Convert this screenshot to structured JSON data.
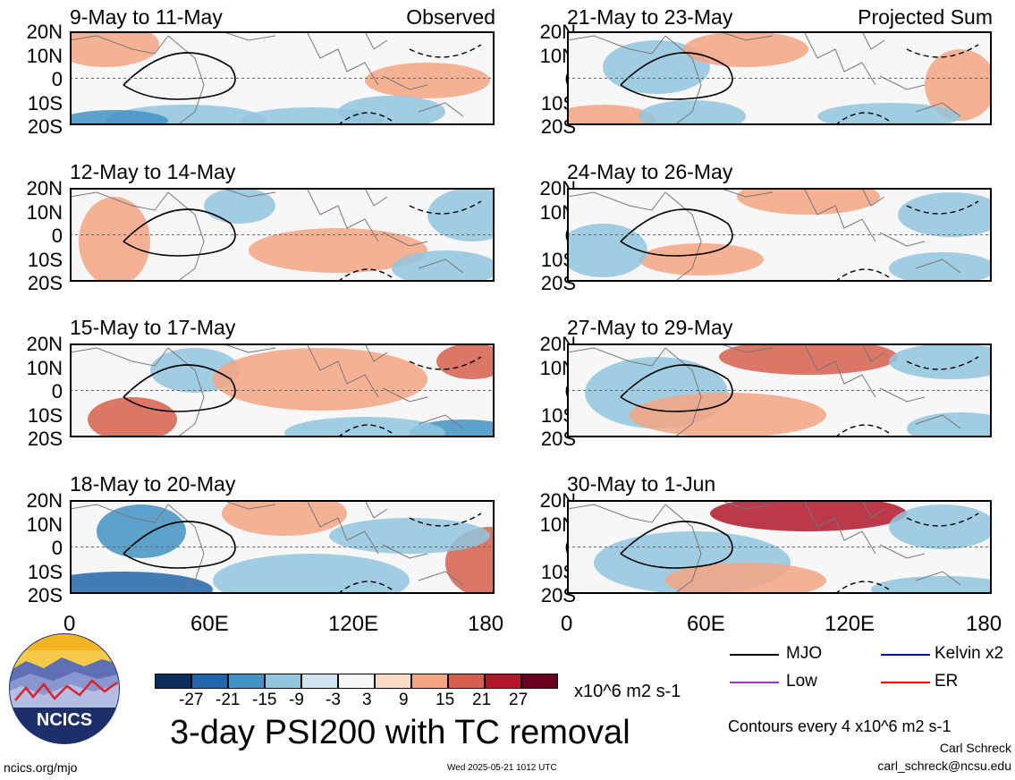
{
  "panels": [
    {
      "id": "p1",
      "title": "9-May to 11-May",
      "label": "Observed"
    },
    {
      "id": "p2",
      "title": "21-May to 23-May",
      "label": "Projected Sum"
    },
    {
      "id": "p3",
      "title": "12-May to 14-May",
      "label": ""
    },
    {
      "id": "p4",
      "title": "24-May to 26-May",
      "label": ""
    },
    {
      "id": "p5",
      "title": "15-May to 17-May",
      "label": ""
    },
    {
      "id": "p6",
      "title": "27-May to 29-May",
      "label": ""
    },
    {
      "id": "p7",
      "title": "18-May to 20-May",
      "label": ""
    },
    {
      "id": "p8",
      "title": "30-May to 1-Jun",
      "label": ""
    }
  ],
  "y_ticks": [
    "20N",
    "10N",
    "0",
    "10S",
    "20S"
  ],
  "x_ticks": [
    "0",
    "60E",
    "120E",
    "180"
  ],
  "colorbar": {
    "ticks": [
      "-27",
      "-21",
      "-15",
      "-9",
      "-3",
      "3",
      "9",
      "15",
      "21",
      "27"
    ],
    "units": "x10^6 m2 s-1",
    "colors": [
      "#0b2d5a",
      "#2166ac",
      "#4393c3",
      "#92c5de",
      "#d1e5f0",
      "#f7f7f7",
      "#fddbc7",
      "#f4a582",
      "#d6604d",
      "#b2182b",
      "#67001f"
    ]
  },
  "legend": {
    "items": [
      {
        "label": "MJO",
        "color": "#000000"
      },
      {
        "label": "Kelvin x2",
        "color": "#0000ff"
      },
      {
        "label": "Low",
        "color": "#9933cc"
      },
      {
        "label": "ER",
        "color": "#ff0000"
      }
    ]
  },
  "main_title": "3-day PSI200 with TC removal",
  "contour_note": "Contours every 4 x10^6 m2 s-1",
  "author": "Carl Schreck",
  "email": "carl_schreck@ncsu.edu",
  "site": "ncics.org/mjo",
  "timestamp": "Wed 2025-05-21 1012 UTC",
  "logo_text": "NCICS"
}
